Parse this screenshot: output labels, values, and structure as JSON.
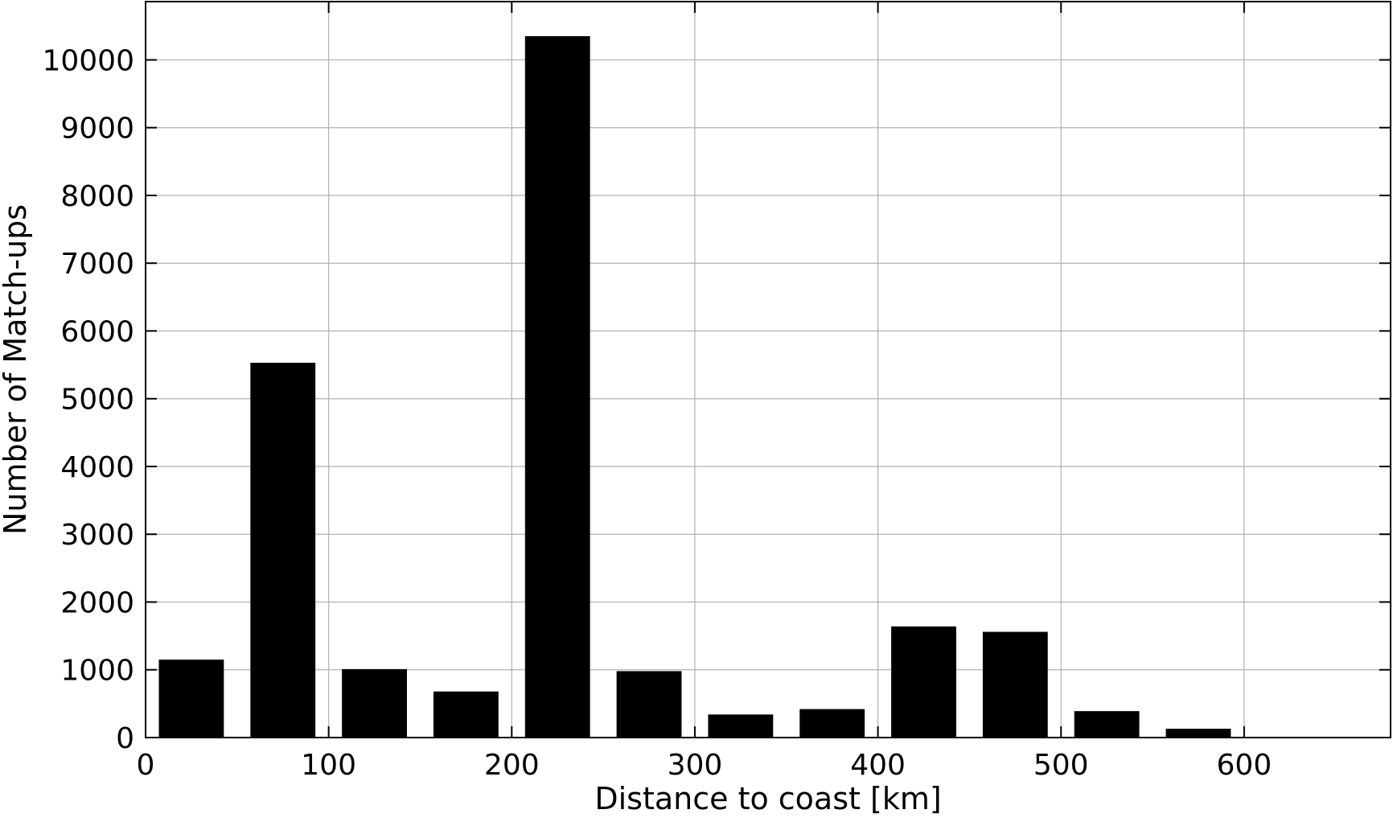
{
  "chart_data": {
    "type": "bar",
    "title": "",
    "xlabel": "Distance to coast [km]",
    "ylabel": "Number of Match-ups",
    "bin_width": 50,
    "x": [
      25,
      75,
      125,
      175,
      225,
      275,
      325,
      375,
      425,
      475,
      525,
      575
    ],
    "values": [
      1150,
      5530,
      1010,
      680,
      10350,
      980,
      340,
      420,
      1640,
      1560,
      390,
      130
    ],
    "xlim": [
      0,
      680
    ],
    "ylim": [
      0,
      10860
    ],
    "xticks": [
      0,
      100,
      200,
      300,
      400,
      500,
      600
    ],
    "yticks": [
      0,
      1000,
      2000,
      3000,
      4000,
      5000,
      6000,
      7000,
      8000,
      9000,
      10000
    ],
    "grid": true,
    "bar_color": "#000000",
    "grid_color": "#b0b0b0"
  }
}
